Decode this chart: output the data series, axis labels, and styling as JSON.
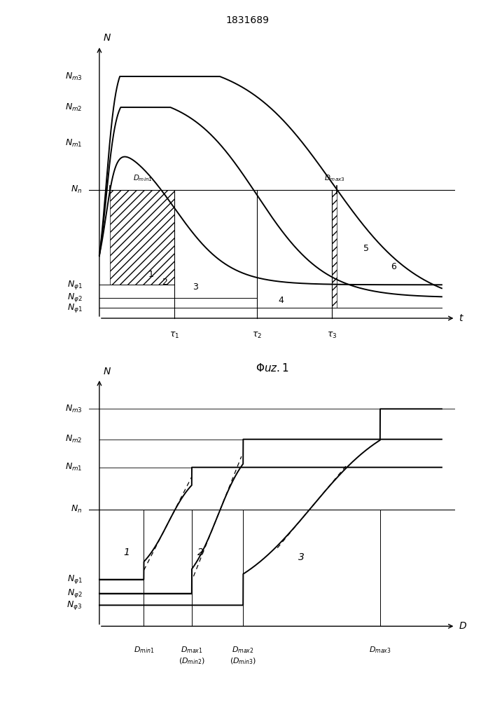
{
  "title": "1831689",
  "fig1": {
    "Nn": 0.5,
    "Nm1": 0.68,
    "Nm2": 0.82,
    "Nm3": 0.94,
    "Nf1": 0.13,
    "Nf2": 0.08,
    "Nf3": 0.04,
    "tau1": 0.22,
    "tau2": 0.46,
    "tau3": 0.68
  },
  "fig2": {
    "Nn": 0.5,
    "Nm1": 0.68,
    "Nm2": 0.8,
    "Nm3": 0.93,
    "Nf1": 0.2,
    "Nf2": 0.14,
    "Nf3": 0.09,
    "Dmin1": 0.13,
    "Dmax1": 0.27,
    "Dmax2": 0.42,
    "Dmax3": 0.82
  },
  "lw": 1.4,
  "font_size": 9,
  "font_size_caption": 11,
  "font_size_title": 10
}
